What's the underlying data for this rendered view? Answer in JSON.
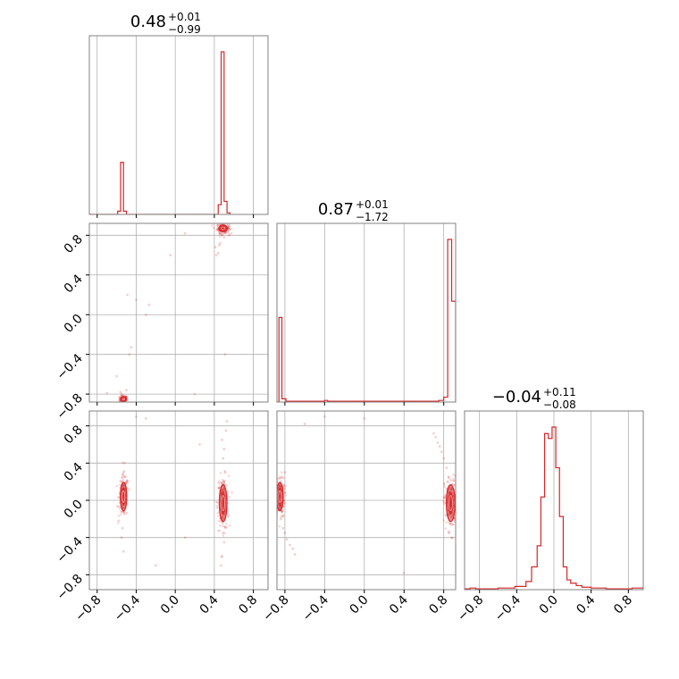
{
  "chart_data": {
    "type": "corner",
    "color": "#d62728",
    "grid": true,
    "titles": [
      {
        "main": "0.48",
        "plus": "+0.01",
        "minus": "−0.99"
      },
      {
        "main": "0.87",
        "plus": "+0.01",
        "minus": "−1.72"
      },
      {
        "main": "−0.04",
        "plus": "+0.11",
        "minus": "−0.08"
      }
    ],
    "tick_values": [
      -0.8,
      -0.4,
      0.0,
      0.4,
      0.8
    ],
    "tick_labels": [
      "−0.8",
      "−0.4",
      "0.0",
      "0.4",
      "0.8"
    ],
    "ranges": [
      [
        -0.88,
        0.95
      ],
      [
        -0.88,
        0.92
      ],
      [
        -0.96,
        0.96
      ]
    ],
    "histograms": [
      {
        "param": 0,
        "bars": [
          {
            "x0": -0.59,
            "x1": -0.56,
            "h": 0.02
          },
          {
            "x0": -0.56,
            "x1": -0.53,
            "h": 0.32
          },
          {
            "x0": -0.53,
            "x1": -0.5,
            "h": 0.02
          },
          {
            "x0": 0.44,
            "x1": 0.47,
            "h": 0.06
          },
          {
            "x0": 0.47,
            "x1": 0.5,
            "h": 1.0
          },
          {
            "x0": 0.5,
            "x1": 0.53,
            "h": 0.08
          },
          {
            "x0": 0.53,
            "x1": 0.56,
            "h": 0.01
          }
        ]
      },
      {
        "param": 1,
        "bars": [
          {
            "x0": -0.86,
            "x1": -0.83,
            "h": 0.52
          },
          {
            "x0": -0.83,
            "x1": -0.79,
            "h": 0.02
          },
          {
            "x0": -0.79,
            "x1": -0.4,
            "h": 0.005
          },
          {
            "x0": -0.4,
            "x1": -0.37,
            "h": 0.01
          },
          {
            "x0": -0.37,
            "x1": 0.75,
            "h": 0.005
          },
          {
            "x0": 0.75,
            "x1": 0.8,
            "h": 0.01
          },
          {
            "x0": 0.8,
            "x1": 0.84,
            "h": 0.03
          },
          {
            "x0": 0.84,
            "x1": 0.88,
            "h": 1.0
          },
          {
            "x0": 0.88,
            "x1": 0.92,
            "h": 0.62
          }
        ]
      },
      {
        "param": 2,
        "bars": [
          {
            "x0": -0.96,
            "x1": -0.9,
            "h": 0.005
          },
          {
            "x0": -0.9,
            "x1": -0.84,
            "h": 0.01
          },
          {
            "x0": -0.84,
            "x1": -0.6,
            "h": 0.005
          },
          {
            "x0": -0.6,
            "x1": -0.42,
            "h": 0.01
          },
          {
            "x0": -0.42,
            "x1": -0.3,
            "h": 0.02
          },
          {
            "x0": -0.3,
            "x1": -0.24,
            "h": 0.05
          },
          {
            "x0": -0.24,
            "x1": -0.18,
            "h": 0.14
          },
          {
            "x0": -0.18,
            "x1": -0.14,
            "h": 0.27
          },
          {
            "x0": -0.14,
            "x1": -0.1,
            "h": 0.57
          },
          {
            "x0": -0.1,
            "x1": -0.06,
            "h": 0.96
          },
          {
            "x0": -0.06,
            "x1": -0.02,
            "h": 0.93
          },
          {
            "x0": -0.02,
            "x1": 0.02,
            "h": 1.0
          },
          {
            "x0": 0.02,
            "x1": 0.06,
            "h": 0.75
          },
          {
            "x0": 0.06,
            "x1": 0.1,
            "h": 0.45
          },
          {
            "x0": 0.1,
            "x1": 0.14,
            "h": 0.14
          },
          {
            "x0": 0.14,
            "x1": 0.18,
            "h": 0.06
          },
          {
            "x0": 0.18,
            "x1": 0.24,
            "h": 0.04
          },
          {
            "x0": 0.24,
            "x1": 0.3,
            "h": 0.025
          },
          {
            "x0": 0.3,
            "x1": 0.4,
            "h": 0.015
          },
          {
            "x0": 0.4,
            "x1": 0.56,
            "h": 0.01
          },
          {
            "x0": 0.56,
            "x1": 0.84,
            "h": 0.005
          },
          {
            "x0": 0.84,
            "x1": 0.96,
            "h": 0.01
          }
        ]
      }
    ],
    "pairs": [
      {
        "x_param": 0,
        "y_param": 1,
        "modes": [
          {
            "x": -0.53,
            "y": -0.85,
            "sx": 0.012,
            "sy": 0.01
          },
          {
            "x": 0.49,
            "y": 0.87,
            "sx": 0.02,
            "sy": 0.015
          }
        ],
        "points": [
          [
            -0.55,
            -0.8
          ],
          [
            -0.56,
            -0.78
          ],
          [
            -0.52,
            -0.82
          ],
          [
            -0.5,
            -0.76
          ],
          [
            -0.47,
            -0.4
          ],
          [
            -0.45,
            -0.33
          ],
          [
            -0.6,
            -0.62
          ],
          [
            -0.3,
            0.0
          ],
          [
            -0.27,
            0.1
          ],
          [
            0.45,
            0.7
          ],
          [
            0.44,
            0.62
          ],
          [
            0.42,
            0.6
          ],
          [
            0.48,
            0.8
          ],
          [
            0.5,
            0.78
          ],
          [
            0.52,
            0.84
          ],
          [
            0.55,
            0.8
          ],
          [
            0.46,
            0.72
          ],
          [
            0.51,
            -0.4
          ],
          [
            -0.7,
            -0.79
          ],
          [
            -0.05,
            0.6
          ],
          [
            0.1,
            0.82
          ],
          [
            -0.4,
            0.15
          ],
          [
            0.2,
            -0.8
          ],
          [
            -0.49,
            0.2
          ],
          [
            0.41,
            0.68
          ]
        ]
      },
      {
        "x_param": 0,
        "y_param": 2,
        "modes": [
          {
            "x": -0.53,
            "y": 0.04,
            "sx": 0.015,
            "sy": 0.07
          },
          {
            "x": 0.49,
            "y": -0.03,
            "sx": 0.018,
            "sy": 0.09
          }
        ],
        "points": [
          [
            -0.53,
            0.3
          ],
          [
            -0.52,
            0.25
          ],
          [
            -0.54,
            -0.3
          ],
          [
            -0.55,
            -0.4
          ],
          [
            -0.53,
            -0.55
          ],
          [
            -0.52,
            0.4
          ],
          [
            0.49,
            0.45
          ],
          [
            0.5,
            0.55
          ],
          [
            0.48,
            0.65
          ],
          [
            0.51,
            0.3
          ],
          [
            0.49,
            -0.35
          ],
          [
            0.5,
            -0.45
          ],
          [
            0.48,
            -0.6
          ],
          [
            0.52,
            0.75
          ],
          [
            0.47,
            -0.7
          ],
          [
            -0.4,
            0.9
          ],
          [
            -0.3,
            0.88
          ],
          [
            0.1,
            -0.4
          ],
          [
            -0.58,
            -0.22
          ],
          [
            0.53,
            0.85
          ],
          [
            0.45,
            0.2
          ],
          [
            -0.49,
            0.2
          ],
          [
            0.5,
            -0.15
          ],
          [
            -0.2,
            -0.7
          ],
          [
            0.25,
            0.6
          ]
        ]
      },
      {
        "x_param": 1,
        "y_param": 2,
        "modes": [
          {
            "x": -0.85,
            "y": 0.04,
            "sx": 0.015,
            "sy": 0.07
          },
          {
            "x": 0.87,
            "y": -0.03,
            "sx": 0.02,
            "sy": 0.09
          }
        ],
        "points": [
          [
            -0.84,
            -0.2
          ],
          [
            -0.82,
            -0.3
          ],
          [
            -0.8,
            -0.35
          ],
          [
            -0.78,
            -0.42
          ],
          [
            -0.75,
            -0.48
          ],
          [
            -0.72,
            -0.52
          ],
          [
            -0.7,
            -0.58
          ],
          [
            -0.83,
            0.25
          ],
          [
            -0.8,
            0.3
          ],
          [
            0.7,
            0.72
          ],
          [
            0.74,
            0.62
          ],
          [
            0.78,
            0.52
          ],
          [
            0.8,
            0.45
          ],
          [
            0.83,
            0.35
          ],
          [
            0.85,
            0.25
          ],
          [
            0.86,
            0.15
          ],
          [
            0.72,
            0.68
          ],
          [
            0.76,
            0.58
          ],
          [
            -0.6,
            0.82
          ],
          [
            -0.4,
            0.9
          ],
          [
            0.0,
            0.88
          ],
          [
            0.9,
            -0.2
          ],
          [
            0.88,
            -0.4
          ],
          [
            -0.86,
            -0.1
          ],
          [
            0.4,
            -0.78
          ]
        ]
      }
    ]
  }
}
